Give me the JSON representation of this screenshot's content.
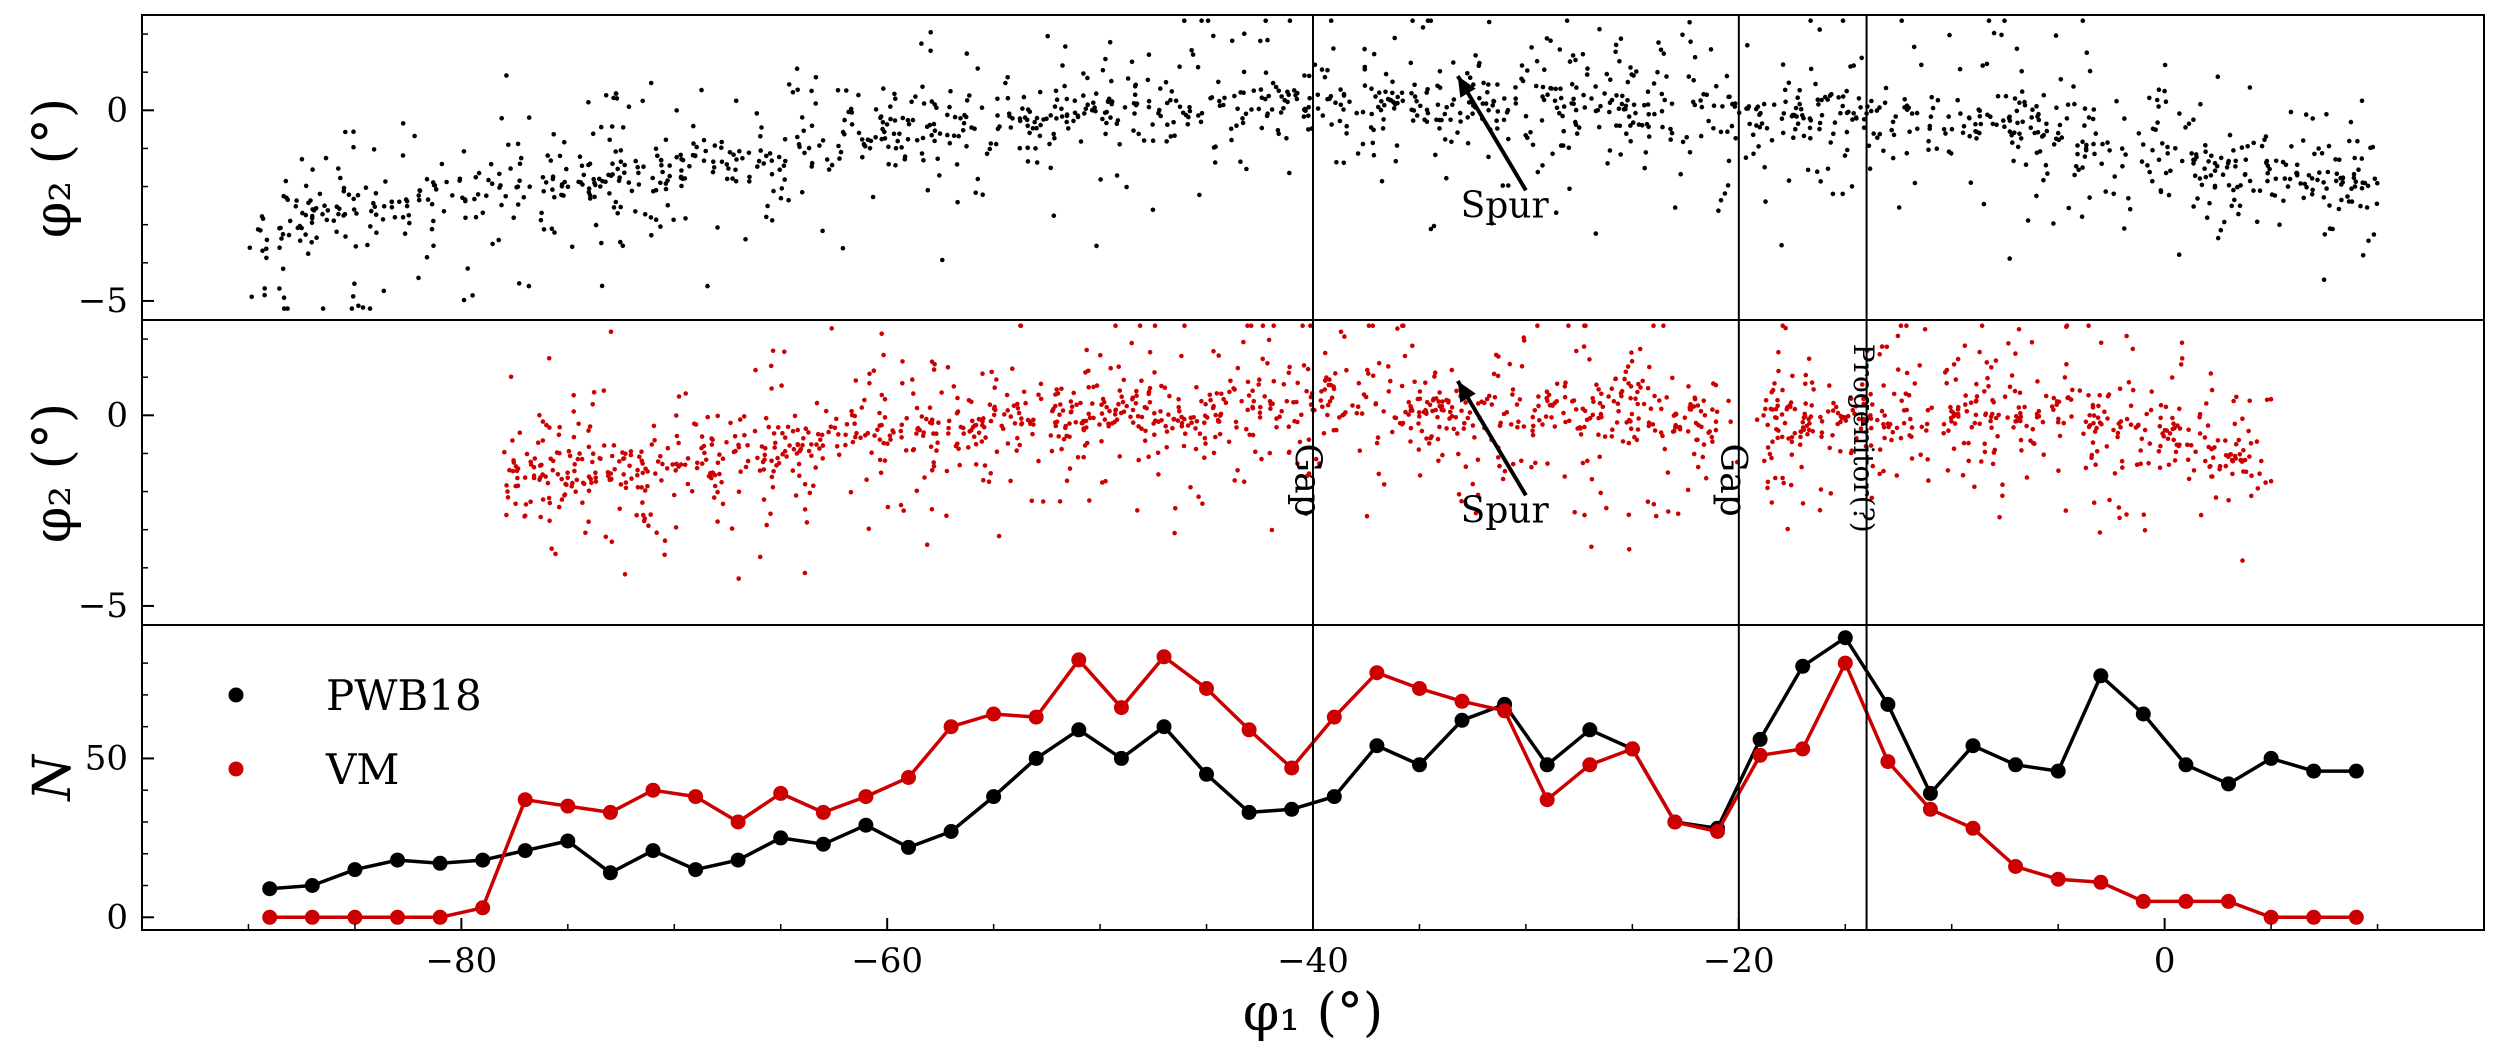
{
  "chart_data": {
    "type": "scatter",
    "panels": [
      {
        "id": "top",
        "type": "scatter",
        "ylabel": "φ₂ (°)",
        "xlim": [
          -95,
          15
        ],
        "ylim": [
          -5.5,
          2.5
        ],
        "yticks": [
          -5,
          0
        ],
        "ytick_labels": [
          "−5",
          "0"
        ],
        "point_color": "#000000",
        "n_points": 1500,
        "seed": 7,
        "x_range": [
          -90,
          10
        ],
        "track": [
          [
            -90,
            -3.0
          ],
          [
            -80,
            -2.3
          ],
          [
            -70,
            -1.5
          ],
          [
            -60,
            -0.7
          ],
          [
            -50,
            0.0
          ],
          [
            -40,
            0.2
          ],
          [
            -30,
            0.1
          ],
          [
            -20,
            0.0
          ],
          [
            -14,
            -0.1
          ],
          [
            -5,
            -0.5
          ],
          [
            0,
            -1.2
          ],
          [
            5,
            -1.8
          ],
          [
            10,
            -2.0
          ]
        ],
        "annotations": [
          {
            "text": "Spur",
            "x": -31,
            "y": -2.5,
            "arrow_from": [
              -30,
              -2.1
            ],
            "arrow_to": [
              -33.2,
              0.9
            ]
          }
        ]
      },
      {
        "id": "middle",
        "type": "scatter",
        "ylabel": "φ₂ (°)",
        "xlim": [
          -95,
          15
        ],
        "ylim": [
          -5.5,
          2.5
        ],
        "yticks": [
          -5,
          0
        ],
        "ytick_labels": [
          "−5",
          "0"
        ],
        "point_color": "#cc0000",
        "n_points": 1600,
        "seed": 13,
        "x_range": [
          -78,
          5
        ],
        "track": [
          [
            -78,
            -1.8
          ],
          [
            -70,
            -1.2
          ],
          [
            -60,
            -0.5
          ],
          [
            -50,
            0.0
          ],
          [
            -40,
            0.2
          ],
          [
            -30,
            0.1
          ],
          [
            -20,
            0.0
          ],
          [
            -14,
            -0.1
          ],
          [
            -5,
            0.0
          ],
          [
            0,
            -0.5
          ],
          [
            5,
            -1.5
          ]
        ],
        "annotations": [
          {
            "text": "Spur",
            "x": -31,
            "y": -2.5,
            "arrow_from": [
              -30,
              -2.1
            ],
            "arrow_to": [
              -33.2,
              0.9
            ]
          },
          {
            "text": "Gap",
            "x": -40,
            "y": -1.7,
            "rotate": 90
          },
          {
            "text": "Gap",
            "x": -20,
            "y": -1.7,
            "rotate": 90
          },
          {
            "text": "Progenitor(?)",
            "x": -14,
            "y": -0.6,
            "rotate": 90
          }
        ]
      },
      {
        "id": "bottom",
        "type": "line",
        "ylabel": "N",
        "xlabel": "φ₁ (°)",
        "xlim": [
          -95,
          15
        ],
        "ylim": [
          -4,
          92
        ],
        "yticks": [
          0,
          50
        ],
        "ytick_labels": [
          "0",
          "50"
        ],
        "xticks": [
          -80,
          -60,
          -40,
          -20,
          0
        ],
        "xtick_labels": [
          "−80",
          "−60",
          "−40",
          "−20",
          "0"
        ],
        "x": [
          -89,
          -87,
          -85,
          -83,
          -81,
          -79,
          -77,
          -75,
          -73,
          -71,
          -69,
          -67,
          -65,
          -63,
          -61,
          -59,
          -57,
          -55,
          -53,
          -51,
          -49,
          -47,
          -45,
          -43,
          -41,
          -39,
          -37,
          -35,
          -33,
          -31,
          -29,
          -27,
          -25,
          -23,
          -21,
          -19,
          -17,
          -15,
          -13,
          -11,
          -9,
          -7,
          -5,
          -3,
          -1,
          1,
          3,
          5,
          7,
          9
        ],
        "series": [
          {
            "name": "PWB18",
            "color": "#000000",
            "values": [
              9,
              10,
              15,
              18,
              17,
              18,
              21,
              24,
              14,
              21,
              15,
              18,
              25,
              23,
              29,
              22,
              27,
              38,
              50,
              59,
              50,
              60,
              45,
              33,
              34,
              38,
              54,
              48,
              62,
              67,
              48,
              59,
              53,
              30,
              28,
              56,
              79,
              88,
              67,
              39,
              54,
              48,
              46,
              76,
              64,
              48,
              42,
              50,
              46,
              46
            ]
          },
          {
            "name": "VM",
            "color": "#cc0000",
            "values": [
              0,
              0,
              0,
              0,
              0,
              3,
              37,
              35,
              33,
              40,
              38,
              30,
              39,
              33,
              38,
              44,
              60,
              64,
              63,
              81,
              66,
              82,
              72,
              59,
              47,
              63,
              77,
              72,
              68,
              65,
              37,
              48,
              53,
              30,
              27,
              51,
              53,
              80,
              49,
              34,
              28,
              16,
              12,
              11,
              5,
              5,
              5,
              0,
              0,
              0
            ]
          }
        ],
        "legend": {
          "placement": "upper-left",
          "entries": [
            "PWB18",
            "VM"
          ]
        }
      }
    ],
    "vlines": [
      -40,
      -20,
      -14
    ],
    "xlabel": "φ₁ (°)"
  }
}
